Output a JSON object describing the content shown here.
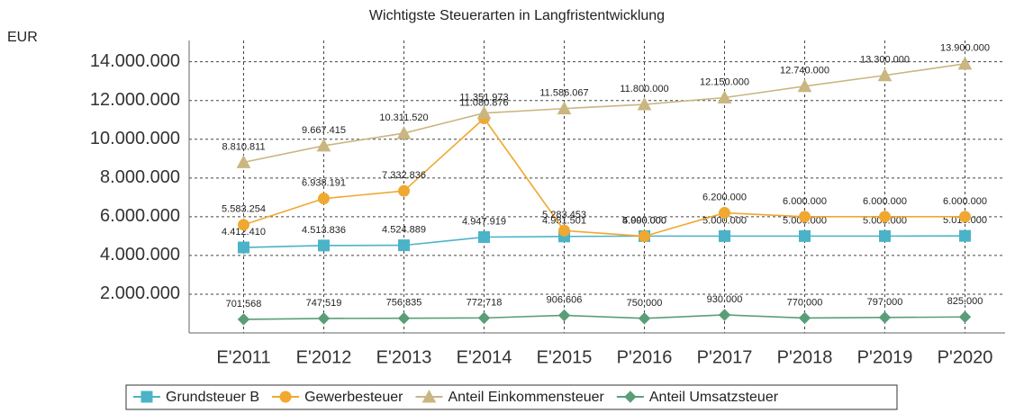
{
  "chart_data": {
    "type": "line",
    "title": "Wichtigste Steuerarten in Langfristentwicklung",
    "y_label": "EUR",
    "categories": [
      "E'2011",
      "E'2012",
      "E'2013",
      "E'2014",
      "E'2015",
      "P'2016",
      "P'2017",
      "P'2018",
      "P'2019",
      "P'2020"
    ],
    "ylim": [
      0,
      15100000
    ],
    "yticks": [
      {
        "value": 2000000,
        "label": "2.000.000"
      },
      {
        "value": 4000000,
        "label": "4.000.000"
      },
      {
        "value": 6000000,
        "label": "6.000.000"
      },
      {
        "value": 8000000,
        "label": "8.000.000"
      },
      {
        "value": 10000000,
        "label": "10.000.000"
      },
      {
        "value": 12000000,
        "label": "12.000.000"
      },
      {
        "value": 14000000,
        "label": "14.000.000"
      }
    ],
    "grid": true,
    "series": [
      {
        "name": "Grundsteuer B",
        "color": "#4bb3c8",
        "marker": "square",
        "values": [
          4412410,
          4513836,
          4524889,
          4947919,
          4981501,
          5000000,
          5000000,
          5000000,
          5000000,
          5010000
        ],
        "value_labels": [
          "4.412.410",
          "4.513.836",
          "4.524.889",
          "4.947.919",
          "4.981.501",
          "5.000.000",
          "5.000.000",
          "5.000.000",
          "5.000.000",
          "5.010.000"
        ]
      },
      {
        "name": "Gewerbesteuer",
        "color": "#f0a830",
        "marker": "circle",
        "values": [
          5583254,
          6938191,
          7332836,
          11080876,
          5283453,
          4990000,
          6200000,
          6000000,
          6000000,
          6000000
        ],
        "value_labels": [
          "5.583.254",
          "6.938.191",
          "7.332.836",
          "11.080.876",
          "5.283.453",
          "4.990.000",
          "6.200.000",
          "6.000.000",
          "6.000.000",
          "6.000.000"
        ]
      },
      {
        "name": "Anteil Einkommensteuer",
        "color": "#c9b680",
        "marker": "triangle",
        "values": [
          8810811,
          9667415,
          10311520,
          11351973,
          11586067,
          11800000,
          12150000,
          12740000,
          13300000,
          13900000
        ],
        "value_labels": [
          "8.810.811",
          "9.667.415",
          "10.311.520",
          "11.351.973",
          "11.586.067",
          "11.800.000",
          "12.150.000",
          "12.740.000",
          "13.300.000",
          "13.900.000"
        ]
      },
      {
        "name": "Anteil Umsatzsteuer",
        "color": "#5a9e78",
        "marker": "diamond",
        "values": [
          701568,
          747519,
          756835,
          772718,
          906606,
          750000,
          930000,
          770000,
          797000,
          825000
        ],
        "value_labels": [
          "701.568",
          "747.519",
          "756.835",
          "772.718",
          "906.606",
          "750.000",
          "930.000",
          "770.000",
          "797.000",
          "825.000"
        ]
      }
    ]
  }
}
